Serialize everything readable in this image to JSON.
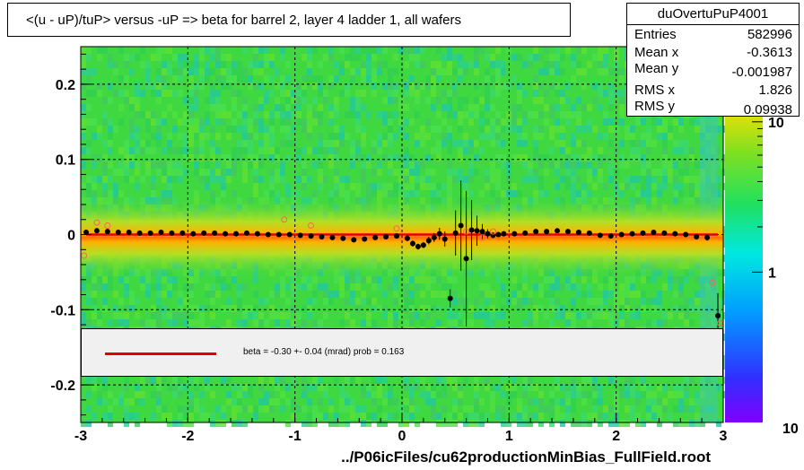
{
  "title": "<(u - uP)/tuP> versus  -uP => beta for barrel 2, layer 4 ladder 1, all wafers",
  "stats": {
    "name": "duOvertuPuP4001",
    "rows": [
      {
        "key": "Entries",
        "value": "582996"
      },
      {
        "key": "Mean x",
        "value": "-0.3613"
      },
      {
        "key": "Mean y",
        "value": "-0.001987"
      },
      {
        "key": "RMS x",
        "value": "1.826"
      },
      {
        "key": "RMS y",
        "value": "0.09938"
      }
    ]
  },
  "fit_legend": "beta =   -0.30 +-  0.04 (mrad) prob = 0.163",
  "colors": {
    "fit_line": "#e00000",
    "heatmap_background": "#40d840",
    "band": "#ffcc00",
    "black_markers": "#000000",
    "red_open_markers": "#ff6060"
  },
  "chart_data": {
    "type": "heatmap",
    "title": "<(u - uP)/tuP> versus  -uP => beta for barrel 2, layer 4 ladder 1, all wafers",
    "xlabel": "../P06icFiles/cu62productionMinBias_FullField.root",
    "ylabel": "",
    "xlim": [
      -3,
      3
    ],
    "ylim": [
      -0.25,
      0.25
    ],
    "x_ticks": [
      -3,
      -2,
      -1,
      0,
      1,
      2,
      3
    ],
    "y_ticks": [
      -0.2,
      -0.1,
      0,
      0.1,
      0.2
    ],
    "y_tick_labels": [
      "-0.2",
      "-0.1",
      "0",
      "0.1",
      "0.2"
    ],
    "colorbar": {
      "scale": "log",
      "tick_labels": [
        "1",
        "10"
      ],
      "bottom_label": "10"
    },
    "grid": true,
    "fit_line": {
      "slope": 0.0,
      "intercept": 0.0,
      "x_range": [
        -2.95,
        2.95
      ]
    },
    "profile_points": {
      "x": [
        -2.95,
        -2.85,
        -2.75,
        -2.65,
        -2.55,
        -2.45,
        -2.35,
        -2.25,
        -2.15,
        -2.05,
        -1.95,
        -1.85,
        -1.75,
        -1.65,
        -1.55,
        -1.45,
        -1.35,
        -1.25,
        -1.15,
        -1.05,
        -0.95,
        -0.85,
        -0.75,
        -0.65,
        -0.55,
        -0.45,
        -0.35,
        -0.25,
        -0.15,
        -0.05,
        0.05,
        0.1,
        0.15,
        0.2,
        0.25,
        0.3,
        0.35,
        0.4,
        0.45,
        0.5,
        0.55,
        0.6,
        0.65,
        0.7,
        0.75,
        0.8,
        0.85,
        0.9,
        0.95,
        1.05,
        1.15,
        1.25,
        1.35,
        1.45,
        1.55,
        1.65,
        1.75,
        1.85,
        1.95,
        2.05,
        2.15,
        2.25,
        2.35,
        2.45,
        2.55,
        2.65,
        2.75,
        2.85,
        2.95
      ],
      "y": [
        0.003,
        0.005,
        0.004,
        0.003,
        0.003,
        0.002,
        0.002,
        0.003,
        0.002,
        0.002,
        0.001,
        0.002,
        0.002,
        0.001,
        0.001,
        0.002,
        0.001,
        0.0,
        0.0,
        0.0,
        -0.001,
        -0.002,
        -0.003,
        -0.004,
        -0.005,
        -0.007,
        -0.006,
        -0.004,
        -0.003,
        -0.002,
        -0.005,
        -0.012,
        -0.016,
        -0.014,
        -0.008,
        -0.004,
        0.001,
        -0.006,
        -0.085,
        0.002,
        0.012,
        -0.032,
        0.006,
        0.005,
        0.004,
        0.001,
        -0.001,
        0.0,
        0.001,
        0.001,
        0.002,
        0.004,
        0.004,
        0.005,
        0.004,
        0.003,
        0.002,
        -0.001,
        -0.002,
        0.0,
        0.001,
        0.002,
        0.003,
        0.002,
        0.001,
        0.0,
        -0.003,
        -0.004,
        -0.108
      ],
      "y_errors": [
        0.003,
        0.002,
        0.002,
        0.002,
        0.002,
        0.002,
        0.002,
        0.002,
        0.002,
        0.002,
        0.002,
        0.002,
        0.002,
        0.002,
        0.002,
        0.002,
        0.002,
        0.002,
        0.002,
        0.002,
        0.002,
        0.002,
        0.002,
        0.002,
        0.002,
        0.002,
        0.002,
        0.002,
        0.002,
        0.003,
        0.004,
        0.004,
        0.004,
        0.004,
        0.005,
        0.006,
        0.008,
        0.01,
        0.012,
        0.03,
        0.06,
        0.09,
        0.04,
        0.02,
        0.01,
        0.006,
        0.004,
        0.003,
        0.003,
        0.002,
        0.002,
        0.002,
        0.002,
        0.002,
        0.002,
        0.002,
        0.002,
        0.002,
        0.002,
        0.002,
        0.002,
        0.002,
        0.002,
        0.002,
        0.002,
        0.002,
        0.003,
        0.004,
        0.03
      ]
    },
    "open_points": {
      "x": [
        -2.97,
        -2.85,
        -2.75,
        -1.1,
        -0.85,
        -0.05,
        0.6,
        0.75,
        0.85,
        2.9,
        2.97
      ],
      "y": [
        -0.028,
        0.016,
        0.012,
        0.02,
        0.012,
        0.008,
        0.004,
        -0.004,
        0.004,
        -0.064,
        -0.118
      ]
    }
  }
}
